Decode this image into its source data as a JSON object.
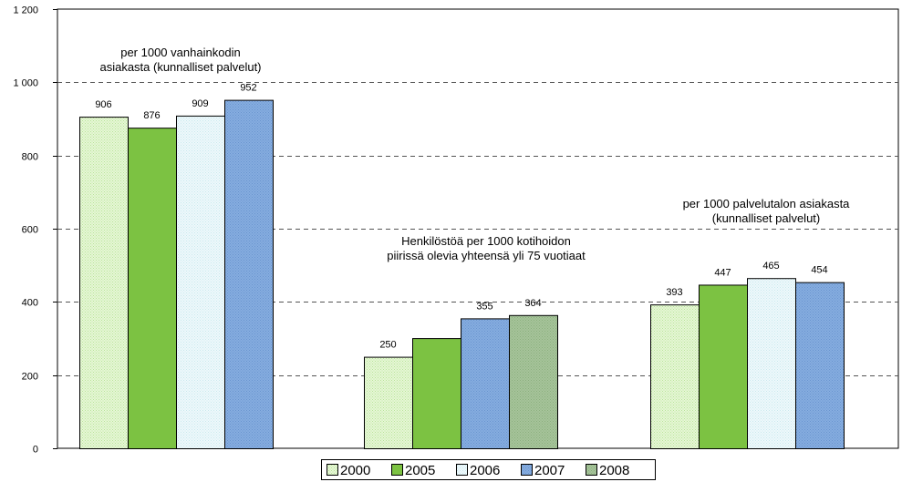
{
  "chart_data": {
    "type": "bar",
    "ylim": [
      0,
      1200
    ],
    "yticks": [
      0,
      200,
      400,
      600,
      800,
      1000,
      1200
    ],
    "ytick_labels": [
      "0",
      "200",
      "400",
      "600",
      "800",
      "1 000",
      "1 200"
    ],
    "grid": "dashed horizontal",
    "legend_placement": "bottom",
    "categories": [
      "",
      "",
      ""
    ],
    "groups": [
      {
        "annotation": [
          "per 1000 vanhainkodin",
          "asiakasta (kunnalliset palvelut)"
        ],
        "bars": [
          {
            "year": "2000",
            "value": 906,
            "label": "906"
          },
          {
            "year": "2005",
            "value": 876,
            "label": "876"
          },
          {
            "year": "2006",
            "value": 909,
            "label": "909"
          },
          {
            "year": "2007",
            "value": 952,
            "label": "952"
          }
        ]
      },
      {
        "annotation": [
          "Henkilöstöä per 1000 kotihoidon",
          "piirissä olevia yhteensä yli 75 vuotiaat"
        ],
        "bars": [
          {
            "year": "2000",
            "value": 250,
            "label": "250"
          },
          {
            "year": "2005",
            "value": 301,
            "label": ""
          },
          {
            "year": "2007",
            "value": 355,
            "label": "355"
          },
          {
            "year": "2008",
            "value": 364,
            "label": "364"
          }
        ]
      },
      {
        "annotation": [
          "per 1000 palvelutalon asiakasta",
          "(kunnalliset palvelut)"
        ],
        "bars": [
          {
            "year": "2000",
            "value": 393,
            "label": "393"
          },
          {
            "year": "2005",
            "value": 447,
            "label": "447"
          },
          {
            "year": "2006",
            "value": 465,
            "label": "465"
          },
          {
            "year": "2007",
            "value": 454,
            "label": "454"
          }
        ]
      }
    ],
    "legend": [
      {
        "name": "2000",
        "color": "#d9f2c2"
      },
      {
        "name": "2005",
        "color": "#7cc242"
      },
      {
        "name": "2006",
        "color": "#e4f4f7"
      },
      {
        "name": "2007",
        "color": "#7ea7dc"
      },
      {
        "name": "2008",
        "color": "#9fbf92"
      }
    ]
  }
}
